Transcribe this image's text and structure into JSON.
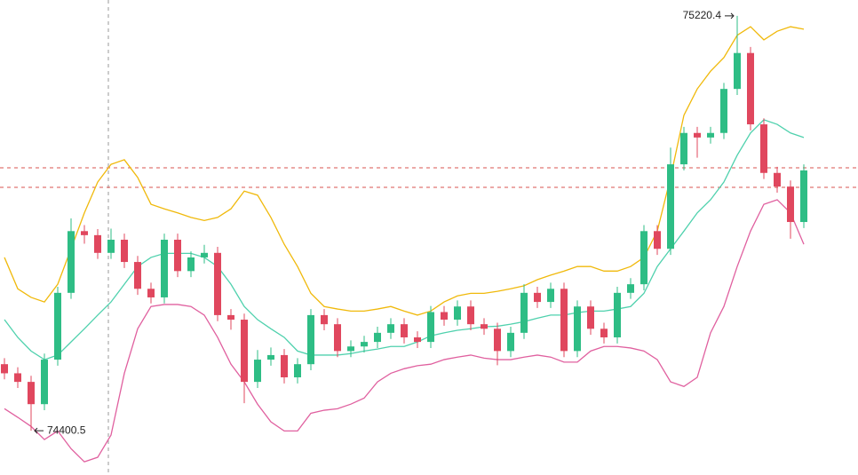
{
  "chart_data": {
    "type": "candlestick",
    "up_color": "#2ebd85",
    "down_color": "#e0475e",
    "ylim": [
      74320,
      75250
    ],
    "open": [
      74532,
      74514,
      74497,
      74453,
      74541,
      74673,
      74795,
      74787,
      74752,
      74778,
      74734,
      74681,
      74664,
      74778,
      74716,
      74743,
      74752,
      74629,
      74620,
      74497,
      74541,
      74550,
      74506,
      74532,
      74629,
      74611,
      74558,
      74567,
      74576,
      74594,
      74611,
      74585,
      74576,
      74635,
      74620,
      74646,
      74611,
      74602,
      74558,
      74594,
      74673,
      74655,
      74681,
      74558,
      74646,
      74602,
      74585,
      74673,
      74690,
      74795,
      74760,
      74927,
      74989,
      74980,
      74989,
      75076,
      75147,
      75006,
      74910,
      74883,
      74813
    ],
    "high": [
      74544,
      74526,
      74509,
      74553,
      74685,
      74820,
      74807,
      74799,
      74800,
      74790,
      74746,
      74693,
      74790,
      74790,
      74755,
      74768,
      74764,
      74641,
      74632,
      74560,
      74565,
      74562,
      74544,
      74641,
      74641,
      74623,
      74579,
      74588,
      74606,
      74623,
      74623,
      74597,
      74647,
      74647,
      74658,
      74658,
      74623,
      74614,
      74606,
      74690,
      74685,
      74693,
      74693,
      74658,
      74658,
      74614,
      74685,
      74702,
      74807,
      74807,
      74960,
      75001,
      75001,
      75001,
      75088,
      75220.4,
      75159,
      75018,
      74922,
      74895,
      74927
    ],
    "low": [
      74502,
      74485,
      74400.5,
      74441,
      74529,
      74661,
      74770,
      74740,
      74740,
      74722,
      74669,
      74652,
      74652,
      74704,
      74704,
      74731,
      74617,
      74600,
      74455,
      74485,
      74529,
      74494,
      74494,
      74520,
      74599,
      74546,
      74546,
      74555,
      74564,
      74582,
      74573,
      74564,
      74564,
      74608,
      74608,
      74599,
      74590,
      74530,
      74546,
      74582,
      74643,
      74643,
      74546,
      74546,
      74590,
      74573,
      74573,
      74661,
      74678,
      74748,
      74748,
      74915,
      74940,
      74968,
      74977,
      75064,
      74994,
      74898,
      74871,
      74780,
      74801
    ],
    "close": [
      74514,
      74497,
      74453,
      74541,
      74673,
      74795,
      74787,
      74752,
      74778,
      74734,
      74681,
      74664,
      74778,
      74716,
      74743,
      74752,
      74629,
      74620,
      74497,
      74541,
      74550,
      74506,
      74532,
      74629,
      74611,
      74558,
      74567,
      74576,
      74594,
      74611,
      74585,
      74576,
      74635,
      74620,
      74646,
      74611,
      74602,
      74558,
      74594,
      74673,
      74655,
      74681,
      74558,
      74646,
      74602,
      74585,
      74673,
      74690,
      74795,
      74760,
      74927,
      74989,
      74980,
      74989,
      75076,
      75147,
      75006,
      74910,
      74883,
      74813,
      74915
    ],
    "bands": [
      {
        "color": "#f0b90b",
        "values": [
          74743,
          74681,
          74664,
          74655,
          74690,
          74760,
          74831,
          74892,
          74927,
          74936,
          74901,
          74848,
          74839,
          74831,
          74822,
          74816,
          74822,
          74839,
          74874,
          74866,
          74822,
          74769,
          74725,
          74672,
          74646,
          74641,
          74637,
          74637,
          74641,
          74646,
          74637,
          74629,
          74637,
          74655,
          74667,
          74672,
          74672,
          74676,
          74681,
          74687,
          74699,
          74708,
          74716,
          74725,
          74725,
          74716,
          74716,
          74725,
          74743,
          74795,
          74901,
          75024,
          75076,
          75111,
          75138,
          75182,
          75199,
          75173,
          75190,
          75199,
          75194
        ]
      },
      {
        "color": "#4fd1ad",
        "values": [
          74620,
          74585,
          74558,
          74541,
          74550,
          74576,
          74602,
          74629,
          74655,
          74690,
          74725,
          74743,
          74751,
          74751,
          74751,
          74743,
          74725,
          74690,
          74646,
          74620,
          74602,
          74585,
          74558,
          74550,
          74550,
          74550,
          74553,
          74558,
          74562,
          74567,
          74567,
          74576,
          74588,
          74594,
          74599,
          74602,
          74606,
          74607,
          74611,
          74616,
          74623,
          74629,
          74629,
          74634,
          74637,
          74637,
          74641,
          74646,
          74672,
          74725,
          74760,
          74795,
          74831,
          74857,
          74892,
          74945,
          74989,
          75015,
          75006,
          74989,
          74980
        ]
      },
      {
        "color": "#e0609f",
        "values": [
          74444,
          74427,
          74409,
          74383,
          74400,
          74365,
          74339,
          74348,
          74392,
          74514,
          74602,
          74646,
          74650,
          74650,
          74646,
          74629,
          74585,
          74532,
          74497,
          74453,
          74418,
          74400,
          74400,
          74435,
          74441,
          74444,
          74453,
          74465,
          74497,
          74514,
          74523,
          74529,
          74532,
          74541,
          74546,
          74550,
          74544,
          74541,
          74541,
          74546,
          74550,
          74546,
          74536,
          74536,
          74558,
          74567,
          74567,
          74564,
          74558,
          74541,
          74497,
          74488,
          74506,
          74594,
          74646,
          74725,
          74795,
          74848,
          74857,
          74831,
          74769
        ]
      }
    ],
    "annotations": [
      {
        "text": "75220.4",
        "index": 55,
        "side": "left"
      },
      {
        "text": "74400.5",
        "index": 2,
        "side": "right"
      }
    ]
  }
}
